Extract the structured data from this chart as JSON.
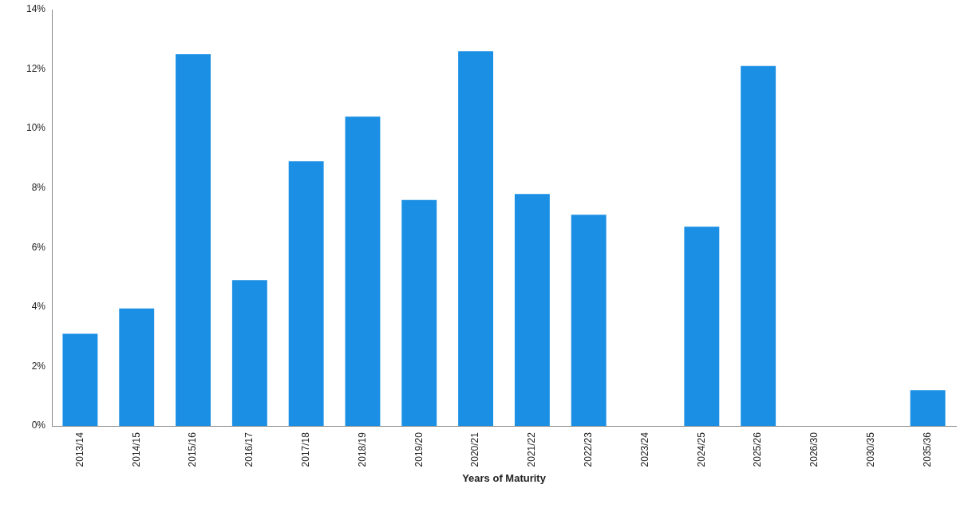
{
  "chart_data": {
    "type": "bar",
    "xlabel": "Years of Maturity",
    "categories": [
      "2013/14",
      "2014/15",
      "2015/16",
      "2016/17",
      "2017/18",
      "2018/19",
      "2019/20",
      "2020/21",
      "2021/22",
      "2022/23",
      "2023/24",
      "2024/25",
      "2025/26",
      "2026/30",
      "2030/35",
      "2035/36"
    ],
    "values": [
      3.1,
      3.95,
      12.5,
      4.9,
      8.9,
      10.4,
      7.6,
      12.6,
      7.8,
      7.1,
      0,
      6.7,
      12.1,
      0,
      0,
      1.2
    ],
    "color": "#1a8fe3",
    "ylim": [
      0,
      14
    ],
    "yticks": [
      {
        "value": 0,
        "label": "0%"
      },
      {
        "value": 2,
        "label": "2%"
      },
      {
        "value": 4,
        "label": "4%"
      },
      {
        "value": 6,
        "label": "6%"
      },
      {
        "value": 8,
        "label": "8%"
      },
      {
        "value": 10,
        "label": "10%"
      },
      {
        "value": 12,
        "label": "12%"
      },
      {
        "value": 14,
        "label": "14%"
      }
    ],
    "grid": false,
    "legend": false
  }
}
